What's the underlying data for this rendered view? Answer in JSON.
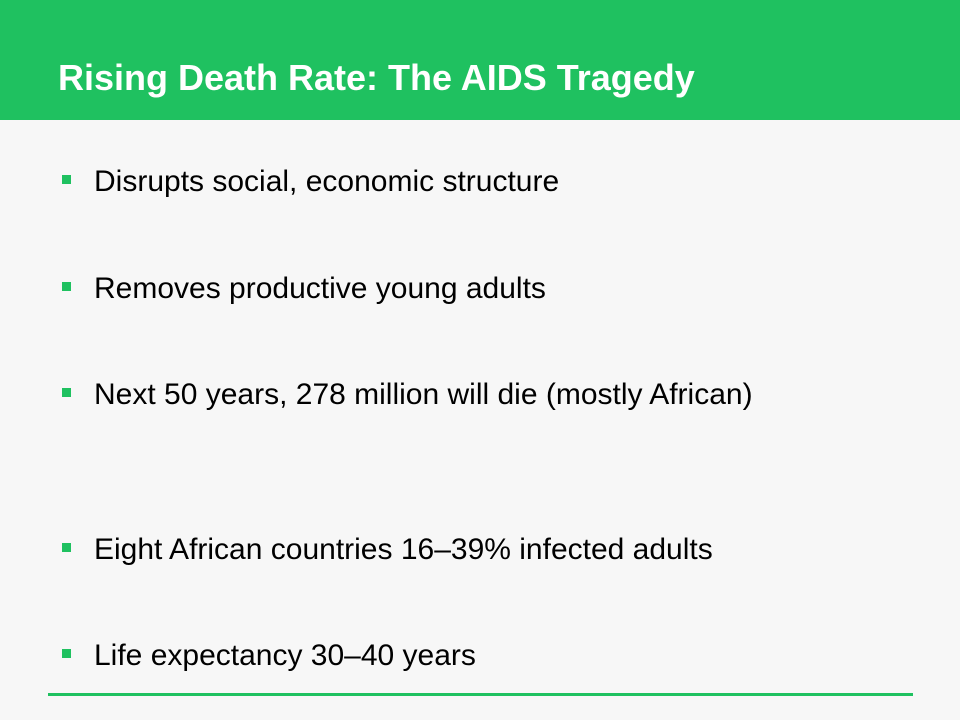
{
  "slide": {
    "title": "Rising Death Rate: The AIDS Tragedy",
    "accent_color": "#1fc160",
    "bullets": [
      "Disrupts social, economic structure",
      "Removes productive young adults",
      "Next 50 years, 278 million will die (mostly African)",
      "Eight African countries 16–39% infected adults",
      "Life expectancy 30–40 years"
    ]
  }
}
